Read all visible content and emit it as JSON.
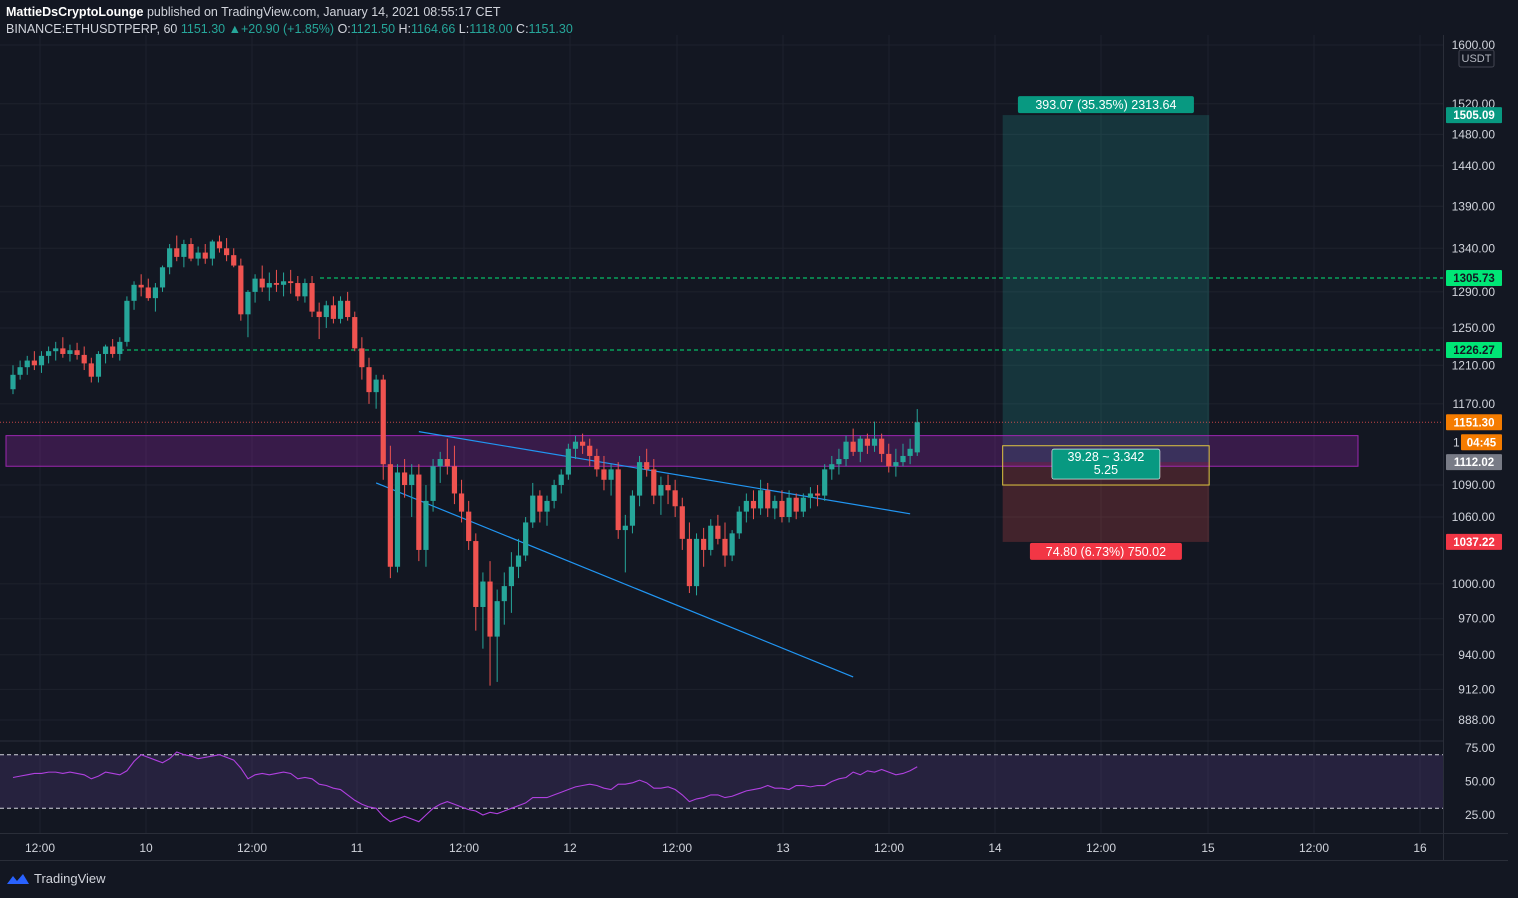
{
  "header": {
    "author": "MattieDsCryptoLounge",
    "published_text": "published on TradingView.com, January 14, 2021 08:55:17 CET",
    "symbol": "BINANCE:ETHUSDTPERP, 60",
    "last": "1151.30",
    "change": "▲+20.90 (+1.85%)",
    "o_label": "O:",
    "o_value": "1121.50",
    "h_label": "H:",
    "h_value": "1164.66",
    "l_label": "L:",
    "l_value": "1118.00",
    "c_label": "C:",
    "c_value": "1151.30"
  },
  "footer": {
    "brand": "TradingView"
  },
  "colors": {
    "background": "#131722",
    "up": "#26a69a",
    "down": "#ef5350",
    "zone": "#9c27b0",
    "trend": "#2196f3",
    "level": "#00e676",
    "rsi": "#b040e0"
  },
  "chart_data": [
    {
      "type": "candlestick",
      "symbol": "ETHUSDTPERP",
      "timeframe": "60",
      "currency_label": "USDT",
      "scale": "log",
      "y_ticks": [
        "1600.00",
        "1520.00",
        "1480.00",
        "1440.00",
        "1390.00",
        "1340.00",
        "1290.00",
        "1250.00",
        "1210.00",
        "1170.00",
        "1090.00",
        "1060.00",
        "1000.00",
        "970.00",
        "940.00",
        "912.00",
        "888.00"
      ],
      "x_ticks": [
        "12:00",
        "10",
        "12:00",
        "11",
        "12:00",
        "12",
        "12:00",
        "13",
        "12:00",
        "14",
        "12:00",
        "15",
        "12:00",
        "16"
      ],
      "ohlc": [
        [
          1185,
          1210,
          1180,
          1200
        ],
        [
          1200,
          1215,
          1195,
          1208
        ],
        [
          1208,
          1220,
          1200,
          1215
        ],
        [
          1215,
          1225,
          1205,
          1210
        ],
        [
          1210,
          1225,
          1202,
          1220
        ],
        [
          1220,
          1230,
          1212,
          1225
        ],
        [
          1225,
          1235,
          1215,
          1228
        ],
        [
          1228,
          1240,
          1218,
          1222
        ],
        [
          1222,
          1232,
          1214,
          1226
        ],
        [
          1226,
          1234,
          1216,
          1221
        ],
        [
          1221,
          1230,
          1205,
          1212
        ],
        [
          1212,
          1218,
          1192,
          1198
        ],
        [
          1198,
          1225,
          1192,
          1222
        ],
        [
          1222,
          1232,
          1212,
          1230
        ],
        [
          1230,
          1238,
          1218,
          1222
        ],
        [
          1222,
          1240,
          1215,
          1235
        ],
        [
          1235,
          1285,
          1230,
          1280
        ],
        [
          1280,
          1302,
          1270,
          1298
        ],
        [
          1298,
          1310,
          1285,
          1295
        ],
        [
          1295,
          1305,
          1280,
          1283
        ],
        [
          1283,
          1300,
          1268,
          1295
        ],
        [
          1295,
          1320,
          1290,
          1318
        ],
        [
          1318,
          1345,
          1310,
          1340
        ],
        [
          1340,
          1355,
          1325,
          1330
        ],
        [
          1330,
          1350,
          1318,
          1345
        ],
        [
          1345,
          1352,
          1325,
          1328
        ],
        [
          1328,
          1342,
          1320,
          1335
        ],
        [
          1335,
          1345,
          1322,
          1328
        ],
        [
          1328,
          1350,
          1320,
          1348
        ],
        [
          1348,
          1355,
          1335,
          1340
        ],
        [
          1340,
          1352,
          1325,
          1332
        ],
        [
          1332,
          1340,
          1318,
          1320
        ],
        [
          1320,
          1328,
          1258,
          1265
        ],
        [
          1265,
          1292,
          1240,
          1290
        ],
        [
          1290,
          1310,
          1278,
          1305
        ],
        [
          1305,
          1320,
          1290,
          1295
        ],
        [
          1295,
          1312,
          1280,
          1300
        ],
        [
          1300,
          1315,
          1290,
          1298
        ],
        [
          1298,
          1312,
          1285,
          1302
        ],
        [
          1302,
          1315,
          1288,
          1300
        ],
        [
          1300,
          1308,
          1280,
          1285
        ],
        [
          1285,
          1305,
          1278,
          1300
        ],
        [
          1300,
          1308,
          1262,
          1268
        ],
        [
          1268,
          1278,
          1238,
          1262
        ],
        [
          1262,
          1280,
          1250,
          1275
        ],
        [
          1275,
          1285,
          1255,
          1260
        ],
        [
          1260,
          1285,
          1255,
          1280
        ],
        [
          1280,
          1290,
          1258,
          1262
        ],
        [
          1262,
          1268,
          1225,
          1228
        ],
        [
          1228,
          1240,
          1195,
          1208
        ],
        [
          1208,
          1218,
          1170,
          1182
        ],
        [
          1182,
          1200,
          1165,
          1195
        ],
        [
          1195,
          1200,
          1095,
          1110
        ],
        [
          1110,
          1128,
          1005,
          1015
        ],
        [
          1015,
          1110,
          1010,
          1102
        ],
        [
          1102,
          1115,
          1078,
          1090
        ],
        [
          1090,
          1110,
          1060,
          1100
        ],
        [
          1100,
          1110,
          1020,
          1030
        ],
        [
          1030,
          1090,
          1015,
          1075
        ],
        [
          1075,
          1115,
          1065,
          1108
        ],
        [
          1108,
          1122,
          1092,
          1115
        ],
        [
          1115,
          1135,
          1100,
          1108
        ],
        [
          1108,
          1128,
          1072,
          1082
        ],
        [
          1082,
          1095,
          1055,
          1065
        ],
        [
          1065,
          1075,
          1030,
          1038
        ],
        [
          1038,
          1045,
          960,
          980
        ],
        [
          980,
          1010,
          945,
          1002
        ],
        [
          1002,
          1020,
          915,
          955
        ],
        [
          955,
          995,
          918,
          985
        ],
        [
          985,
          1010,
          965,
          998
        ],
        [
          998,
          1028,
          975,
          1015
        ],
        [
          1015,
          1040,
          1005,
          1025
        ],
        [
          1025,
          1060,
          1020,
          1055
        ],
        [
          1055,
          1092,
          1050,
          1080
        ],
        [
          1080,
          1085,
          1055,
          1065
        ],
        [
          1065,
          1080,
          1052,
          1075
        ],
        [
          1075,
          1095,
          1068,
          1090
        ],
        [
          1090,
          1105,
          1082,
          1100
        ],
        [
          1100,
          1130,
          1095,
          1125
        ],
        [
          1125,
          1138,
          1115,
          1132
        ],
        [
          1132,
          1140,
          1120,
          1128
        ],
        [
          1128,
          1135,
          1108,
          1118
        ],
        [
          1118,
          1125,
          1098,
          1105
        ],
        [
          1105,
          1118,
          1085,
          1095
        ],
        [
          1095,
          1110,
          1080,
          1105
        ],
        [
          1105,
          1112,
          1040,
          1048
        ],
        [
          1048,
          1062,
          1010,
          1052
        ],
        [
          1052,
          1085,
          1045,
          1080
        ],
        [
          1080,
          1118,
          1070,
          1112
        ],
        [
          1112,
          1125,
          1098,
          1105
        ],
        [
          1105,
          1115,
          1072,
          1080
        ],
        [
          1080,
          1098,
          1062,
          1090
        ],
        [
          1090,
          1100,
          1072,
          1085
        ],
        [
          1085,
          1095,
          1060,
          1070
        ],
        [
          1070,
          1078,
          1030,
          1040
        ],
        [
          1040,
          1055,
          992,
          998
        ],
        [
          998,
          1045,
          990,
          1040
        ],
        [
          1040,
          1050,
          1015,
          1030
        ],
        [
          1030,
          1058,
          1025,
          1052
        ],
        [
          1052,
          1062,
          1035,
          1040
        ],
        [
          1040,
          1055,
          1015,
          1025
        ],
        [
          1025,
          1048,
          1020,
          1045
        ],
        [
          1045,
          1070,
          1040,
          1065
        ],
        [
          1065,
          1082,
          1055,
          1075
        ],
        [
          1075,
          1085,
          1058,
          1068
        ],
        [
          1068,
          1095,
          1062,
          1085
        ],
        [
          1085,
          1092,
          1060,
          1068
        ],
        [
          1068,
          1080,
          1058,
          1075
        ],
        [
          1075,
          1085,
          1055,
          1060
        ],
        [
          1060,
          1085,
          1055,
          1078
        ],
        [
          1078,
          1082,
          1058,
          1065
        ],
        [
          1065,
          1082,
          1060,
          1078
        ],
        [
          1078,
          1088,
          1068,
          1082
        ],
        [
          1082,
          1090,
          1070,
          1080
        ],
        [
          1080,
          1110,
          1075,
          1105
        ],
        [
          1105,
          1118,
          1095,
          1110
        ],
        [
          1110,
          1125,
          1100,
          1115
        ],
        [
          1115,
          1138,
          1108,
          1132
        ],
        [
          1132,
          1145,
          1118,
          1122
        ],
        [
          1122,
          1138,
          1112,
          1135
        ],
        [
          1135,
          1140,
          1120,
          1128
        ],
        [
          1128,
          1152,
          1122,
          1135
        ],
        [
          1135,
          1140,
          1112,
          1120
        ],
        [
          1120,
          1130,
          1102,
          1108
        ],
        [
          1108,
          1125,
          1098,
          1112
        ],
        [
          1112,
          1130,
          1108,
          1118
        ],
        [
          1118,
          1135,
          1110,
          1125
        ],
        [
          1121.5,
          1164.66,
          1118,
          1151.3
        ]
      ],
      "horizontal_levels": [
        1305.73,
        1226.27,
        1151.3,
        1112.02
      ],
      "zone": {
        "from": 1108,
        "to": 1138
      },
      "trendlines": [
        {
          "start": [
            57,
            1142
          ],
          "end": [
            126,
            1063
          ]
        },
        {
          "start": [
            51,
            1092
          ],
          "end": [
            118,
            922
          ]
        }
      ],
      "position": {
        "type": "long",
        "entry": 1112.02,
        "target": 1505.09,
        "stop": 1037.22,
        "target_label": "393.07 (35.35%) 2313.64",
        "stop_label": "74.80 (6.73%) 750.02",
        "ratio_line1": "39.28 ~ 3.342",
        "ratio_line2": "5.25",
        "start_index": 139,
        "end_index": 168
      },
      "price_badges": {
        "target": "1505.09",
        "level1": "1305.73",
        "level2": "1226.27",
        "last": "1151.30",
        "countdown": "04:45",
        "entry": "1112.02",
        "stop": "1037.22",
        "partial_tick": "1"
      }
    },
    {
      "type": "line",
      "indicator": "RSI",
      "y_ticks": [
        "75.00",
        "50.00",
        "25.00"
      ],
      "bands": [
        30,
        70
      ],
      "values": [
        53,
        54,
        55,
        56,
        56,
        57,
        57,
        56,
        57,
        56,
        55,
        52,
        54,
        57,
        56,
        55,
        58,
        65,
        70,
        68,
        66,
        64,
        67,
        72,
        70,
        69,
        67,
        68,
        69,
        70,
        68,
        66,
        60,
        52,
        55,
        56,
        55,
        56,
        57,
        56,
        52,
        53,
        52,
        48,
        47,
        45,
        44,
        40,
        36,
        33,
        31,
        30,
        24,
        20,
        22,
        24,
        22,
        20,
        25,
        30,
        33,
        35,
        33,
        31,
        29,
        28,
        25,
        27,
        26,
        28,
        30,
        32,
        34,
        38,
        38,
        38,
        40,
        42,
        44,
        46,
        47,
        48,
        47,
        45,
        44,
        48,
        48,
        49,
        51,
        49,
        45,
        45,
        46,
        44,
        40,
        35,
        37,
        38,
        40,
        40,
        38,
        39,
        41,
        43,
        44,
        45,
        47,
        45,
        45,
        44,
        47,
        47,
        46,
        47,
        47,
        50,
        52,
        53,
        57,
        55,
        58,
        57,
        59,
        57,
        55,
        56,
        58,
        61
      ]
    }
  ]
}
